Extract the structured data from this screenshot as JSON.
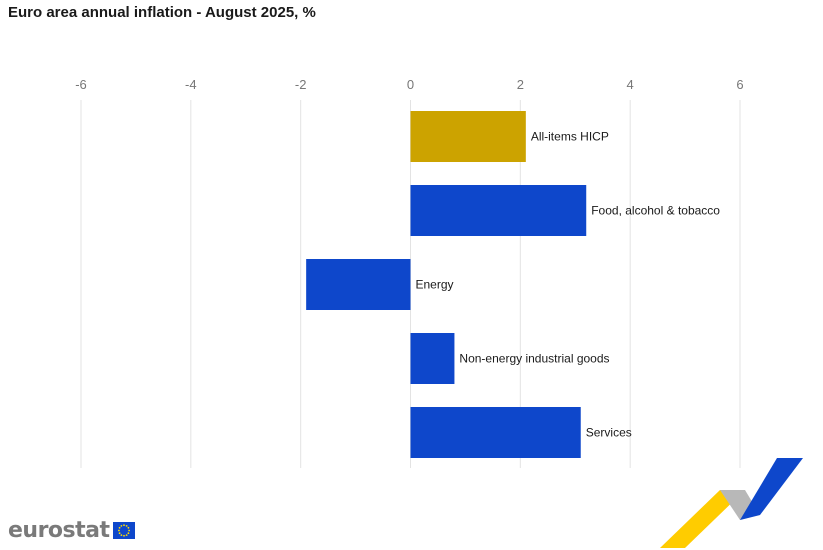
{
  "title": "Euro area annual inflation - August 2025, %",
  "brand": {
    "logo_text": "eurostat"
  },
  "colors": {
    "highlight": "#CCA300",
    "series": "#0E47CB",
    "grid": "#E3E3E3",
    "tick_text": "#777777"
  },
  "chart_data": {
    "type": "bar",
    "orientation": "horizontal",
    "title": "Euro area annual inflation - August 2025, %",
    "categories": [
      "All-items HICP",
      "Food, alcohol & tobacco",
      "Energy",
      "Non-energy industrial goods",
      "Services"
    ],
    "values": [
      2.1,
      3.2,
      -1.9,
      0.8,
      3.1
    ],
    "highlight_index": 0,
    "xlim": [
      -6,
      6
    ],
    "x_ticks": [
      -6,
      -4,
      -2,
      0,
      2,
      4,
      6
    ],
    "axis_position": "top",
    "grid": true,
    "legend": "none"
  }
}
